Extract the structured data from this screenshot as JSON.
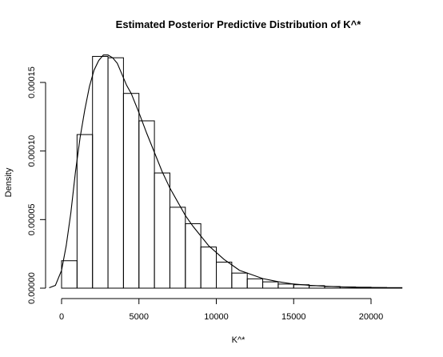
{
  "chart_data": {
    "type": "bar",
    "title": "Estimated Posterior Predictive Distribution of K^*",
    "xlabel": "K^*",
    "ylabel": "Density",
    "xlim": [
      0,
      22000
    ],
    "ylim": [
      0,
      0.000168
    ],
    "x_ticks": [
      0,
      5000,
      10000,
      15000,
      20000
    ],
    "x_tick_labels": [
      "0",
      "5000",
      "10000",
      "15000",
      "20000"
    ],
    "y_ticks": [
      0,
      5e-05,
      0.0001,
      0.00015
    ],
    "y_tick_labels": [
      "0.00000",
      "0.00005",
      "0.00010",
      "0.00015"
    ],
    "grid": false,
    "legend": "none",
    "histogram": {
      "bin_width": 1000,
      "bin_edges": [
        0,
        1000,
        2000,
        3000,
        4000,
        5000,
        6000,
        7000,
        8000,
        9000,
        10000,
        11000,
        12000,
        13000,
        14000,
        15000,
        16000,
        17000,
        18000,
        19000,
        20000,
        21000,
        22000
      ],
      "values": [
        2e-05,
        0.000112,
        0.000169,
        0.000168,
        0.000142,
        0.000122,
        8.4e-05,
        5.9e-05,
        4.7e-05,
        3e-05,
        1.9e-05,
        1.1e-05,
        6.8e-06,
        4.6e-06,
        3e-06,
        2.5e-06,
        1.8e-06,
        1.2e-06,
        9e-07,
        7e-07,
        5e-07,
        4e-07
      ]
    },
    "density_curve": {
      "x": [
        -800,
        -400,
        0,
        300,
        600,
        900,
        1200,
        1500,
        1800,
        2100,
        2400,
        2700,
        3000,
        3300,
        3600,
        3900,
        4200,
        4500,
        5000,
        5500,
        6000,
        6500,
        7000,
        7500,
        8000,
        8500,
        9000,
        9500,
        10000,
        10500,
        11000,
        11500,
        12000,
        13000,
        14000,
        15000,
        16000,
        17000,
        18000,
        19000,
        20000,
        21000,
        22000
      ],
      "y": [
        3e-07,
        2e-06,
        1.3e-05,
        3.1e-05,
        5.5e-05,
        8.5e-05,
        0.00011,
        0.00013,
        0.000147,
        0.000159,
        0.000166,
        0.00017,
        0.00017,
        0.000168,
        0.000164,
        0.000156,
        0.000148,
        0.000142,
        0.000128,
        0.000113,
        9.9e-05,
        8.5e-05,
        7.3e-05,
        6.3e-05,
        5.3e-05,
        4.5e-05,
        3.8e-05,
        3.1e-05,
        2.6e-05,
        2.1e-05,
        1.7e-05,
        1.3e-05,
        1.1e-05,
        7e-06,
        4.7e-06,
        3e-06,
        2.1e-06,
        1.4e-06,
        9e-07,
        6e-07,
        4e-07,
        3e-07,
        2e-07
      ]
    }
  }
}
